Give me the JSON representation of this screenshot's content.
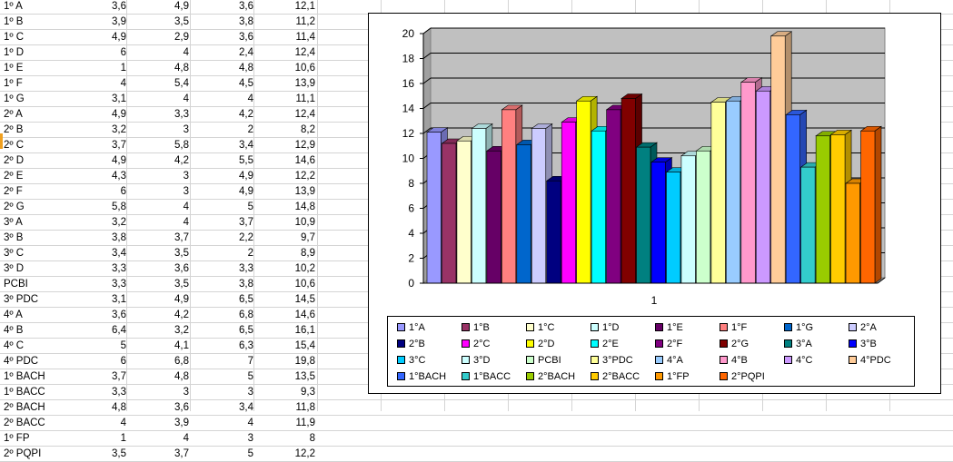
{
  "sheet": {
    "rows": [
      [
        "1º A",
        "3,6",
        "4,9",
        "3,6",
        "12,1"
      ],
      [
        "1º B",
        "3,9",
        "3,5",
        "3,8",
        "11,2"
      ],
      [
        "1º C",
        "4,9",
        "2,9",
        "3,6",
        "11,4"
      ],
      [
        "1º D",
        "6",
        "4",
        "2,4",
        "12,4"
      ],
      [
        "1º E",
        "1",
        "4,8",
        "4,8",
        "10,6"
      ],
      [
        "1º F",
        "4",
        "5,4",
        "4,5",
        "13,9"
      ],
      [
        "1º G",
        "3,1",
        "4",
        "4",
        "11,1"
      ],
      [
        "2º A",
        "4,9",
        "3,3",
        "4,2",
        "12,4"
      ],
      [
        "2º B",
        "3,2",
        "3",
        "2",
        "8,2"
      ],
      [
        "2º C",
        "3,7",
        "5,8",
        "3,4",
        "12,9"
      ],
      [
        "2º D",
        "4,9",
        "4,2",
        "5,5",
        "14,6"
      ],
      [
        "2º E",
        "4,3",
        "3",
        "4,9",
        "12,2"
      ],
      [
        "2º F",
        "6",
        "3",
        "4,9",
        "13,9"
      ],
      [
        "2º G",
        "5,8",
        "4",
        "5",
        "14,8"
      ],
      [
        "3º A",
        "3,2",
        "4",
        "3,7",
        "10,9"
      ],
      [
        "3º B",
        "3,8",
        "3,7",
        "2,2",
        "9,7"
      ],
      [
        "3º C",
        "3,4",
        "3,5",
        "2",
        "8,9"
      ],
      [
        "3º D",
        "3,3",
        "3,6",
        "3,3",
        "10,2"
      ],
      [
        "PCBI",
        "3,3",
        "3,5",
        "3,8",
        "10,6"
      ],
      [
        "3º PDC",
        "3,1",
        "4,9",
        "6,5",
        "14,5"
      ],
      [
        "4º A",
        "3,6",
        "4,2",
        "6,8",
        "14,6"
      ],
      [
        "4º B",
        "6,4",
        "3,2",
        "6,5",
        "16,1"
      ],
      [
        "4º C",
        "5",
        "4,1",
        "6,3",
        "15,4"
      ],
      [
        "4º PDC",
        "6",
        "6,8",
        "7",
        "19,8"
      ],
      [
        "1º BACH",
        "3,7",
        "4,8",
        "5",
        "13,5"
      ],
      [
        "1º BACC",
        "3,3",
        "3",
        "3",
        "9,3"
      ],
      [
        "2º BACH",
        "4,8",
        "3,6",
        "3,4",
        "11,8"
      ],
      [
        "2º BACC",
        "4",
        "3,9",
        "4",
        "11,9"
      ],
      [
        "1º FP",
        "1",
        "4",
        "3",
        "8"
      ],
      [
        "2º PQPI",
        "3,5",
        "3,7",
        "5",
        "12,2"
      ]
    ]
  },
  "chart_data": {
    "type": "bar",
    "categories": [
      "1"
    ],
    "ylim": [
      0,
      20
    ],
    "yticks": [
      0,
      2,
      4,
      6,
      8,
      10,
      12,
      14,
      16,
      18,
      20
    ],
    "grid": true,
    "legend_position": "bottom",
    "series": [
      {
        "name": "1°A",
        "value": 12.1,
        "color": "#9999ff"
      },
      {
        "name": "1°B",
        "value": 11.2,
        "color": "#993366"
      },
      {
        "name": "1°C",
        "value": 11.4,
        "color": "#ffffcc"
      },
      {
        "name": "1°D",
        "value": 12.4,
        "color": "#ccffff"
      },
      {
        "name": "1°E",
        "value": 10.6,
        "color": "#660066"
      },
      {
        "name": "1°F",
        "value": 13.9,
        "color": "#ff8080"
      },
      {
        "name": "1°G",
        "value": 11.1,
        "color": "#0066cc"
      },
      {
        "name": "2°A",
        "value": 12.4,
        "color": "#ccccff"
      },
      {
        "name": "2°B",
        "value": 8.2,
        "color": "#000080"
      },
      {
        "name": "2°C",
        "value": 12.9,
        "color": "#ff00ff"
      },
      {
        "name": "2°D",
        "value": 14.6,
        "color": "#ffff00"
      },
      {
        "name": "2°E",
        "value": 12.2,
        "color": "#00ffff"
      },
      {
        "name": "2°F",
        "value": 13.9,
        "color": "#800080"
      },
      {
        "name": "2°G",
        "value": 14.8,
        "color": "#800000"
      },
      {
        "name": "3°A",
        "value": 10.9,
        "color": "#008080"
      },
      {
        "name": "3°B",
        "value": 9.7,
        "color": "#0000ff"
      },
      {
        "name": "3°C",
        "value": 8.9,
        "color": "#00ccff"
      },
      {
        "name": "3°D",
        "value": 10.2,
        "color": "#ccffff"
      },
      {
        "name": "PCBI",
        "value": 10.6,
        "color": "#ccffcc"
      },
      {
        "name": "3°PDC",
        "value": 14.5,
        "color": "#ffff99"
      },
      {
        "name": "4°A",
        "value": 14.6,
        "color": "#99ccff"
      },
      {
        "name": "4°B",
        "value": 16.1,
        "color": "#ff99cc"
      },
      {
        "name": "4°C",
        "value": 15.4,
        "color": "#cc99ff"
      },
      {
        "name": "4°PDC",
        "value": 19.8,
        "color": "#ffcc99"
      },
      {
        "name": "1°BACH",
        "value": 13.5,
        "color": "#3366ff"
      },
      {
        "name": "1°BACC",
        "value": 9.3,
        "color": "#33cccc"
      },
      {
        "name": "2°BACH",
        "value": 11.8,
        "color": "#99cc00"
      },
      {
        "name": "2°BACC",
        "value": 11.9,
        "color": "#ffcc00"
      },
      {
        "name": "1°FP",
        "value": 8,
        "color": "#ff9900"
      },
      {
        "name": "2°PQPI",
        "value": 12.2,
        "color": "#ff6600"
      }
    ]
  }
}
